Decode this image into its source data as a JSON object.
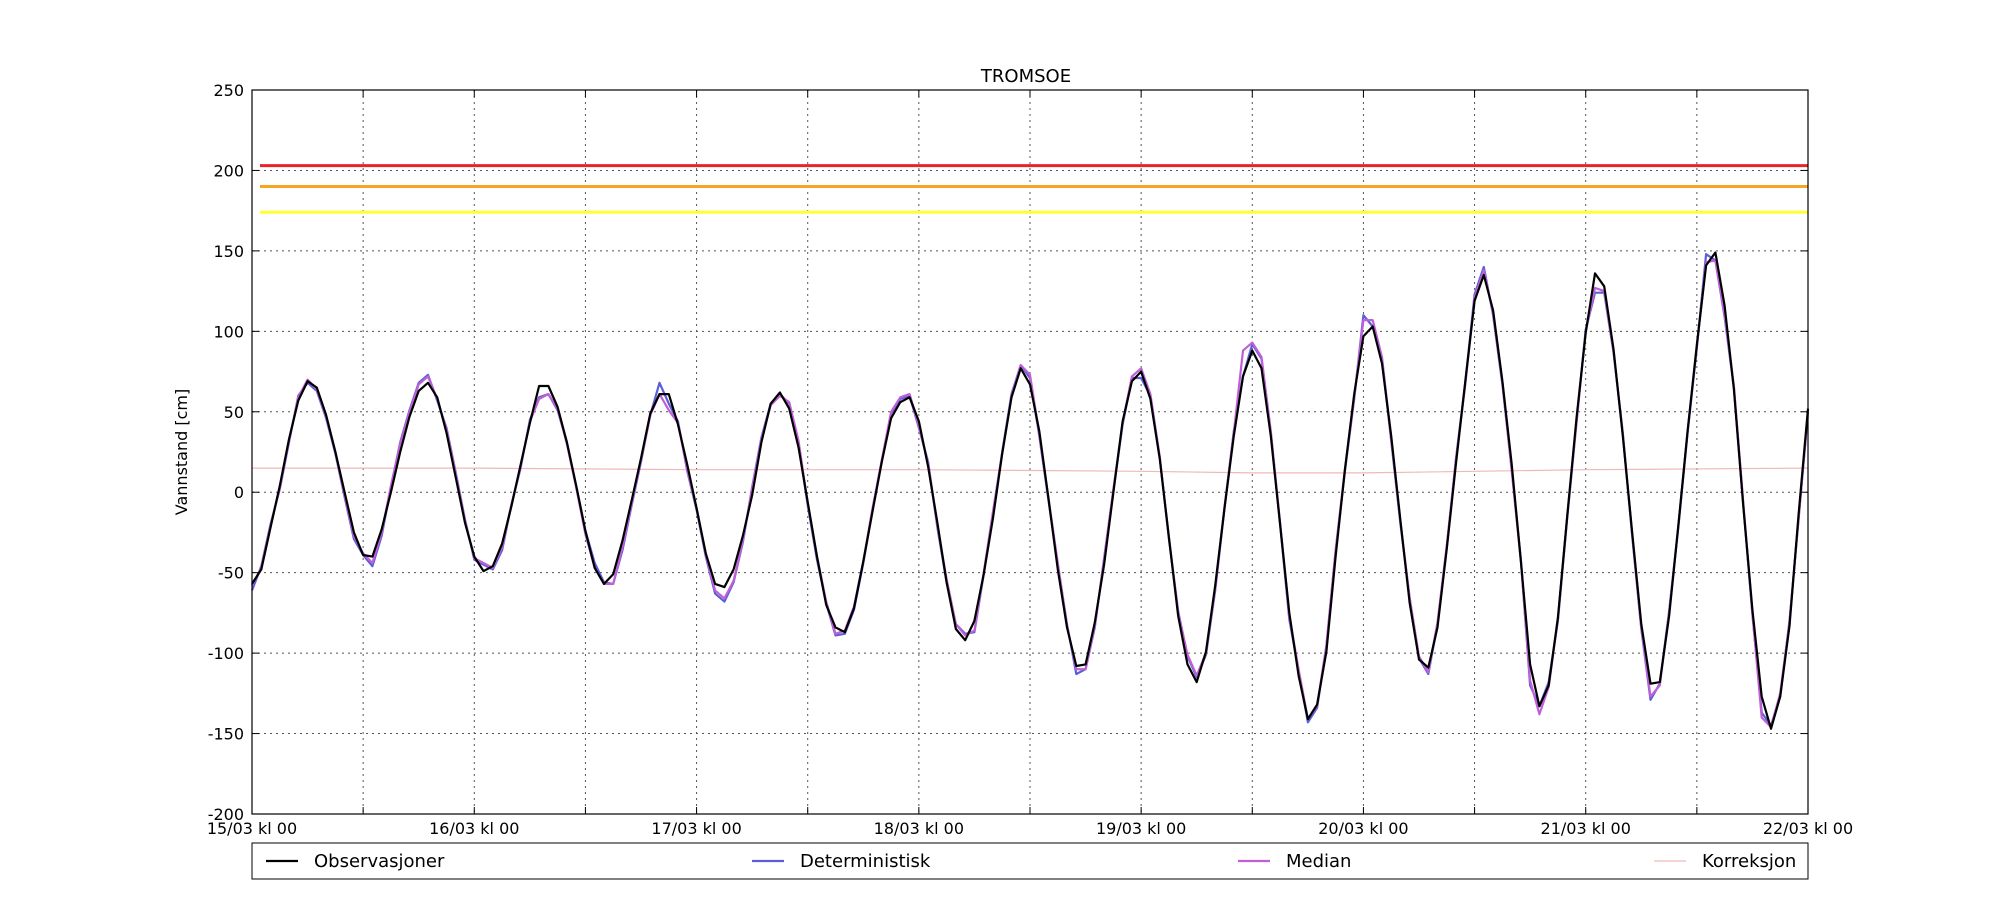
{
  "chart_data": {
    "type": "line",
    "title": "TROMSOE",
    "ylabel": "Vannstand [cm]",
    "xlabel": "",
    "ylim": [
      -200,
      250
    ],
    "y_ticks": [
      -200,
      -150,
      -100,
      -50,
      0,
      50,
      100,
      150,
      200,
      250
    ],
    "x_range_hours": [
      0,
      168
    ],
    "x_tick_hours": [
      0,
      24,
      48,
      72,
      96,
      120,
      144,
      168
    ],
    "x_tick_labels": [
      "15/03 kl 00",
      "16/03 kl 00",
      "17/03 kl 00",
      "18/03 kl 00",
      "19/03 kl 00",
      "20/03 kl 00",
      "21/03 kl 00",
      "22/03 kl 00"
    ],
    "x_minor_hours": [
      12,
      36,
      60,
      84,
      108,
      132,
      156
    ],
    "grid": true,
    "legend_position": "bottom",
    "thresholds": [
      {
        "value": 203,
        "color": "#e8232b"
      },
      {
        "value": 190,
        "color": "#f5a623"
      },
      {
        "value": 174,
        "color": "#ffff33"
      }
    ],
    "series": [
      {
        "name": "Observasjoner",
        "color": "#000000",
        "x": [
          0,
          1,
          2,
          3,
          4,
          5,
          6,
          7,
          8,
          9,
          10,
          11,
          12,
          13,
          14,
          15,
          16,
          17,
          18,
          19,
          20,
          21,
          22,
          23,
          24,
          25,
          26,
          27,
          28,
          29,
          30,
          31,
          32,
          33,
          34,
          35,
          36,
          37,
          38,
          39,
          40,
          41,
          42,
          43,
          44,
          45,
          46,
          47,
          48,
          49,
          50,
          51,
          52,
          53,
          54,
          55,
          56,
          57,
          58,
          59,
          60,
          61,
          62,
          63,
          64,
          65,
          66,
          67,
          68,
          69,
          70,
          71,
          72,
          73,
          74,
          75,
          76,
          77,
          78,
          79,
          80,
          81,
          82,
          83,
          84,
          85,
          86,
          87,
          88,
          89,
          90,
          91,
          92,
          93,
          94,
          95,
          96,
          97,
          98,
          99,
          100,
          101,
          102,
          103,
          104,
          105,
          106,
          107,
          108,
          109,
          110,
          111,
          112,
          113,
          114,
          115,
          116,
          117,
          118,
          119,
          120,
          121,
          122,
          123,
          124,
          125,
          126,
          127,
          128,
          129,
          130,
          131,
          132,
          133,
          134,
          135,
          136,
          137,
          138,
          139,
          140,
          141,
          142,
          143,
          144,
          145,
          146,
          147,
          148,
          149,
          150,
          151,
          152,
          153,
          154,
          155,
          156,
          157,
          158,
          159,
          160,
          161,
          162,
          163,
          164,
          165,
          166,
          167,
          168
        ],
        "y": [
          -57,
          -48,
          -22,
          4,
          33,
          57,
          69,
          65,
          48,
          25,
          0,
          -25,
          -39,
          -40,
          -23,
          0,
          25,
          47,
          63,
          68,
          59,
          37,
          9,
          -19,
          -40,
          -49,
          -46,
          -32,
          -9,
          17,
          43,
          66,
          66,
          53,
          31,
          4,
          -24,
          -47,
          -57,
          -51,
          -30,
          -5,
          21,
          49,
          61,
          61,
          42,
          17,
          -10,
          -38,
          -57,
          -59,
          -48,
          -27,
          -2,
          31,
          55,
          62,
          52,
          28,
          -6,
          -40,
          -70,
          -84,
          -87,
          -72,
          -43,
          -12,
          19,
          46,
          56,
          59,
          44,
          16,
          -19,
          -56,
          -85,
          -92,
          -80,
          -51,
          -16,
          24,
          59,
          77,
          67,
          38,
          -4,
          -48,
          -84,
          -108,
          -107,
          -81,
          -45,
          0,
          44,
          69,
          75,
          58,
          21,
          -28,
          -77,
          -107,
          -118,
          -99,
          -58,
          -10,
          35,
          72,
          88,
          77,
          35,
          -20,
          -75,
          -114,
          -141,
          -132,
          -99,
          -40,
          14,
          61,
          97,
          103,
          80,
          35,
          -18,
          -69,
          -104,
          -109,
          -84,
          -35,
          18,
          69,
          119,
          135,
          113,
          69,
          18,
          -43,
          -107,
          -133,
          -120,
          -78,
          -15,
          46,
          99,
          136,
          128,
          89,
          35,
          -24,
          -82,
          -119,
          -118,
          -77,
          -21,
          38,
          92,
          141,
          149,
          116,
          64,
          -8,
          -73,
          -127,
          -147,
          -127,
          -83,
          -13,
          52
        ]
      },
      {
        "name": "Deterministisk",
        "color": "#5a5fd8",
        "x": [
          0,
          1,
          2,
          3,
          4,
          5,
          6,
          7,
          8,
          9,
          10,
          11,
          12,
          13,
          14,
          15,
          16,
          17,
          18,
          19,
          20,
          21,
          22,
          23,
          24,
          25,
          26,
          27,
          28,
          29,
          30,
          31,
          32,
          33,
          34,
          35,
          36,
          37,
          38,
          39,
          40,
          41,
          42,
          43,
          44,
          45,
          46,
          47,
          48,
          49,
          50,
          51,
          52,
          53,
          54,
          55,
          56,
          57,
          58,
          59,
          60,
          61,
          62,
          63,
          64,
          65,
          66,
          67,
          68,
          69,
          70,
          71,
          72,
          73,
          74,
          75,
          76,
          77,
          78,
          79,
          80,
          81,
          82,
          83,
          84,
          85,
          86,
          87,
          88,
          89,
          90,
          91,
          92,
          93,
          94,
          95,
          96,
          97,
          98,
          99,
          100,
          101,
          102,
          103,
          104,
          105,
          106,
          107,
          108,
          109,
          110,
          111,
          112,
          113,
          114,
          115,
          116,
          117,
          118,
          119,
          120,
          121,
          122,
          123,
          124,
          125,
          126,
          127,
          128,
          129,
          130,
          131,
          132,
          133,
          134,
          135,
          136,
          137,
          138,
          139,
          140,
          141,
          142,
          143,
          144,
          145,
          146,
          147,
          148,
          149,
          150,
          151,
          152,
          153,
          154,
          155,
          156,
          157,
          158,
          159,
          160,
          161,
          162,
          163,
          164,
          165,
          166,
          167,
          168
        ],
        "y": [
          -61,
          -46,
          -20,
          2,
          31,
          60,
          68,
          63,
          46,
          24,
          -3,
          -29,
          -39,
          -46,
          -27,
          3,
          31,
          51,
          68,
          73,
          57,
          40,
          12,
          -17,
          -42,
          -45,
          -48,
          -36,
          -8,
          15,
          45,
          59,
          61,
          51,
          31,
          4,
          -24,
          -44,
          -56,
          -57,
          -36,
          -8,
          19,
          48,
          68,
          55,
          44,
          13,
          -11,
          -40,
          -63,
          -68,
          -56,
          -31,
          3,
          34,
          55,
          61,
          55,
          30,
          -8,
          -42,
          -69,
          -89,
          -88,
          -73,
          -44,
          -11,
          19,
          49,
          58,
          60,
          40,
          19,
          -22,
          -56,
          -82,
          -88,
          -87,
          -51,
          -13,
          25,
          61,
          79,
          71,
          35,
          -5,
          -45,
          -82,
          -113,
          -110,
          -84,
          -41,
          1,
          42,
          71,
          71,
          60,
          22,
          -29,
          -74,
          -102,
          -115,
          -101,
          -61,
          -10,
          38,
          72,
          92,
          83,
          37,
          -20,
          -79,
          -111,
          -143,
          -134,
          -96,
          -37,
          13,
          58,
          110,
          103,
          83,
          32,
          -20,
          -66,
          -103,
          -113,
          -82,
          -34,
          21,
          68,
          123,
          140,
          110,
          67,
          15,
          -42,
          -120,
          -133,
          -118,
          -80,
          -16,
          43,
          101,
          124,
          124,
          87,
          37,
          -26,
          -85,
          -129,
          -119,
          -74,
          -22,
          37,
          90,
          148,
          144,
          109,
          65,
          -7,
          -76,
          -137,
          -145,
          -127,
          -80,
          -16,
          50
        ]
      },
      {
        "name": "Median",
        "color": "#c060d8",
        "x": [
          0,
          1,
          2,
          3,
          4,
          5,
          6,
          7,
          8,
          9,
          10,
          11,
          12,
          13,
          14,
          15,
          16,
          17,
          18,
          19,
          20,
          21,
          22,
          23,
          24,
          25,
          26,
          27,
          28,
          29,
          30,
          31,
          32,
          33,
          34,
          35,
          36,
          37,
          38,
          39,
          40,
          41,
          42,
          43,
          44,
          45,
          46,
          47,
          48,
          49,
          50,
          51,
          52,
          53,
          54,
          55,
          56,
          57,
          58,
          59,
          60,
          61,
          62,
          63,
          64,
          65,
          66,
          67,
          68,
          69,
          70,
          71,
          72,
          73,
          74,
          75,
          76,
          77,
          78,
          79,
          80,
          81,
          82,
          83,
          84,
          85,
          86,
          87,
          88,
          89,
          90,
          91,
          92,
          93,
          94,
          95,
          96,
          97,
          98,
          99,
          100,
          101,
          102,
          103,
          104,
          105,
          106,
          107,
          108,
          109,
          110,
          111,
          112,
          113,
          114,
          115,
          116,
          117,
          118,
          119,
          120,
          121,
          122,
          123,
          124,
          125,
          126,
          127,
          128,
          129,
          130,
          131,
          132,
          133,
          134,
          135,
          136,
          137,
          138,
          139,
          140,
          141,
          142,
          143,
          144,
          145,
          146,
          147,
          148,
          149,
          150,
          151,
          152,
          153,
          154,
          155,
          156,
          157,
          158,
          159,
          160,
          161,
          162,
          163,
          164,
          165,
          166,
          167,
          168
        ],
        "y": [
          -58,
          -47,
          -21,
          3,
          32,
          59,
          70,
          64,
          47,
          25,
          -2,
          -27,
          -38,
          -44,
          -25,
          4,
          30,
          50,
          67,
          72,
          58,
          39,
          11,
          -18,
          -41,
          -44,
          -47,
          -34,
          -8,
          16,
          44,
          58,
          61,
          52,
          30,
          3,
          -26,
          -47,
          -57,
          -57,
          -34,
          -7,
          20,
          48,
          61,
          51,
          43,
          14,
          -10,
          -39,
          -61,
          -66,
          -55,
          -30,
          2,
          33,
          54,
          60,
          56,
          32,
          -7,
          -40,
          -68,
          -88,
          -86,
          -71,
          -43,
          -10,
          20,
          50,
          59,
          61,
          41,
          18,
          -21,
          -54,
          -82,
          -89,
          -86,
          -50,
          -12,
          24,
          60,
          79,
          73,
          36,
          -4,
          -44,
          -83,
          -110,
          -110,
          -83,
          -42,
          2,
          43,
          72,
          77,
          61,
          22,
          -28,
          -75,
          -101,
          -114,
          -100,
          -60,
          -9,
          37,
          88,
          93,
          84,
          38,
          -19,
          -77,
          -110,
          -141,
          -133,
          -95,
          -36,
          14,
          59,
          107,
          107,
          84,
          33,
          -19,
          -66,
          -102,
          -112,
          -81,
          -33,
          20,
          67,
          121,
          138,
          111,
          68,
          14,
          -43,
          -117,
          -138,
          -121,
          -79,
          -15,
          44,
          100,
          127,
          125,
          88,
          36,
          -25,
          -84,
          -127,
          -120,
          -75,
          -21,
          38,
          91,
          143,
          144,
          110,
          66,
          -6,
          -75,
          -140,
          -146,
          -125,
          -81,
          -15,
          49
        ]
      },
      {
        "name": "Korreksjon",
        "color": "#f0b8b8",
        "x": [
          0,
          24,
          48,
          72,
          96,
          108,
          120,
          144,
          168
        ],
        "y": [
          15,
          15,
          14,
          14,
          13,
          12,
          12,
          14,
          15
        ]
      }
    ]
  }
}
